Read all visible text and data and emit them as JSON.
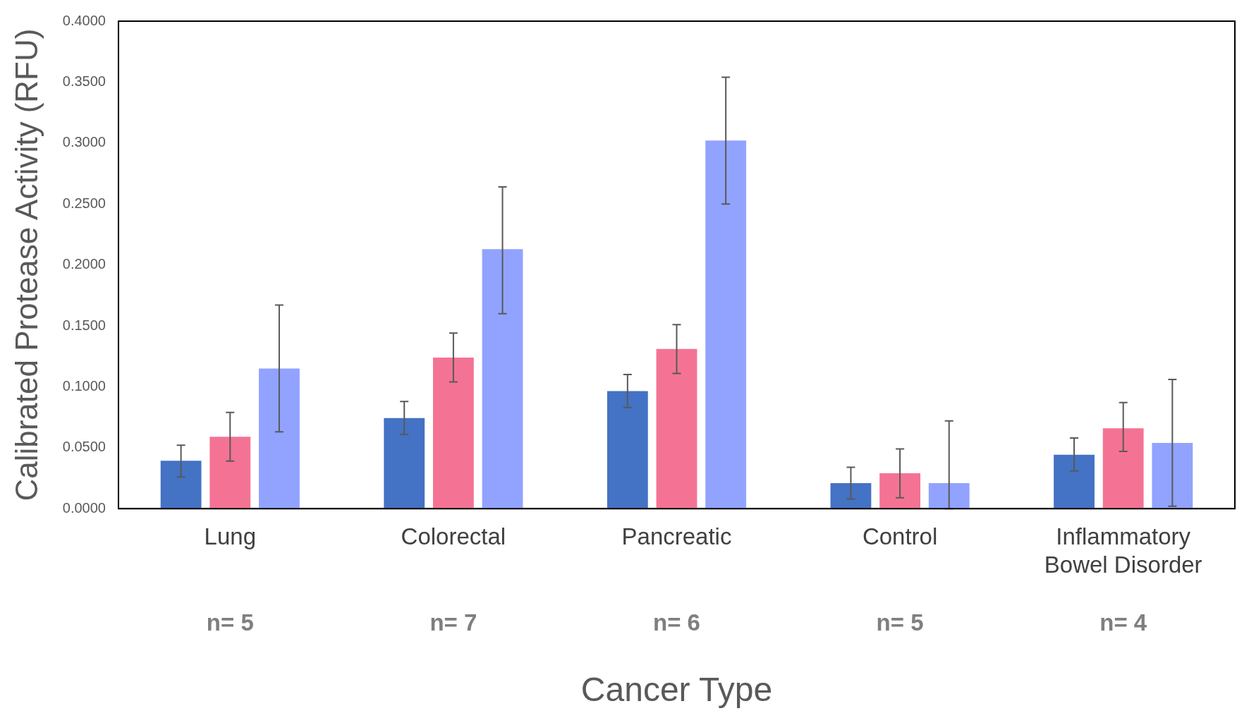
{
  "chart_data": {
    "type": "bar",
    "ylabel": "Calibrated Protease Activity (RFU)",
    "xlabel": "Cancer Type",
    "categories": [
      "Lung",
      "Colorectal",
      "Pancreatic",
      "Control",
      "Inflammatory Bowel Disorder"
    ],
    "series": [
      {
        "color": "#4472c4",
        "values": [
          0.0393,
          0.0743,
          0.0965,
          0.0209,
          0.0442
        ],
        "errors": [
          [
            0.026,
            0.052
          ],
          [
            0.061,
            0.088
          ],
          [
            0.083,
            0.11
          ],
          [
            0.008,
            0.034
          ],
          [
            0.031,
            0.058
          ]
        ]
      },
      {
        "color": "#f47394",
        "values": [
          0.059,
          0.124,
          0.131,
          0.029,
          0.066
        ],
        "errors": [
          [
            0.039,
            0.079
          ],
          [
            0.104,
            0.144
          ],
          [
            0.111,
            0.151
          ],
          [
            0.009,
            0.049
          ],
          [
            0.047,
            0.087
          ]
        ]
      },
      {
        "color": "#91a3ff",
        "values": [
          0.115,
          0.213,
          0.302,
          0.021,
          0.054
        ],
        "errors": [
          [
            0.063,
            0.167
          ],
          [
            0.16,
            0.264
          ],
          [
            0.25,
            0.354
          ],
          [
            0.0,
            0.072
          ],
          [
            0.002,
            0.106
          ]
        ]
      }
    ],
    "ylim": [
      0,
      0.4
    ],
    "yticks": [
      {
        "value": 0,
        "label": "0.0000"
      },
      {
        "value": 0.05,
        "label": "0.0500"
      },
      {
        "value": 0.1,
        "label": "0.1000"
      },
      {
        "value": 0.15,
        "label": "0.1500"
      },
      {
        "value": 0.2,
        "label": "0.2000"
      },
      {
        "value": 0.25,
        "label": "0.2500"
      },
      {
        "value": 0.3,
        "label": "0.3000"
      },
      {
        "value": 0.35,
        "label": "0.3500"
      },
      {
        "value": 0.4,
        "label": "0.4000"
      }
    ],
    "annotations": [
      "n= 5",
      "n= 7",
      "n= 6",
      "n= 5",
      "n= 4"
    ],
    "grid": false,
    "legend": false
  }
}
